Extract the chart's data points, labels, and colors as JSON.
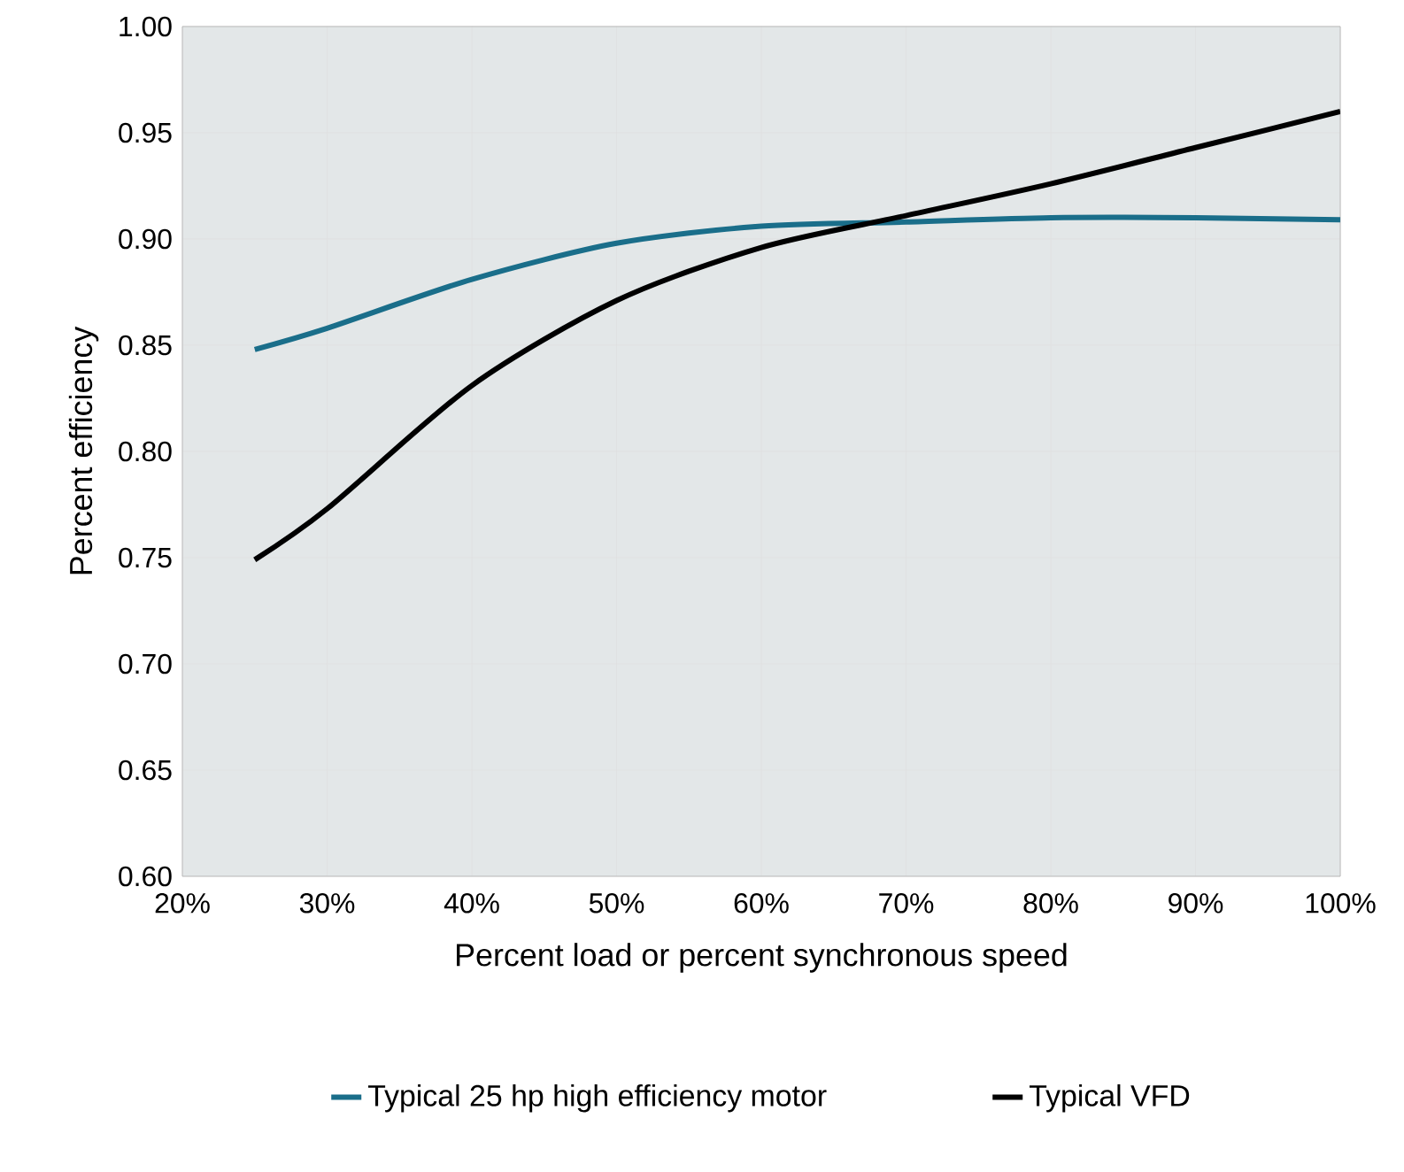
{
  "chart_data": {
    "type": "line",
    "xlabel": "Percent load or percent synchronous speed",
    "ylabel": "Percent efficiency",
    "x": [
      25,
      30,
      40,
      50,
      60,
      70,
      80,
      90,
      100
    ],
    "series": [
      {
        "name": "Typical 25 hp high efficiency motor",
        "color": "#1a6e8a",
        "values": [
          0.848,
          0.858,
          0.881,
          0.898,
          0.906,
          0.908,
          0.91,
          0.91,
          0.909
        ]
      },
      {
        "name": "Typical VFD",
        "color": "#000000",
        "values": [
          0.749,
          0.773,
          0.831,
          0.871,
          0.896,
          0.911,
          0.926,
          0.943,
          0.96
        ]
      }
    ],
    "xlim": [
      20,
      100
    ],
    "ylim": [
      0.6,
      1.0
    ],
    "xticks": [
      {
        "value": 20,
        "label": "20%"
      },
      {
        "value": 30,
        "label": "30%"
      },
      {
        "value": 40,
        "label": "40%"
      },
      {
        "value": 50,
        "label": "50%"
      },
      {
        "value": 60,
        "label": "60%"
      },
      {
        "value": 70,
        "label": "70%"
      },
      {
        "value": 80,
        "label": "80%"
      },
      {
        "value": 90,
        "label": "90%"
      },
      {
        "value": 100,
        "label": "100%"
      }
    ],
    "yticks": [
      {
        "value": 0.6,
        "label": "0.60"
      },
      {
        "value": 0.65,
        "label": "0.65"
      },
      {
        "value": 0.7,
        "label": "0.70"
      },
      {
        "value": 0.75,
        "label": "0.75"
      },
      {
        "value": 0.8,
        "label": "0.80"
      },
      {
        "value": 0.85,
        "label": "0.85"
      },
      {
        "value": 0.9,
        "label": "0.90"
      },
      {
        "value": 0.95,
        "label": "0.95"
      },
      {
        "value": 1.0,
        "label": "1.00"
      }
    ],
    "grid": true,
    "legend": "bottom",
    "marker": "none",
    "line_style": "solid"
  }
}
